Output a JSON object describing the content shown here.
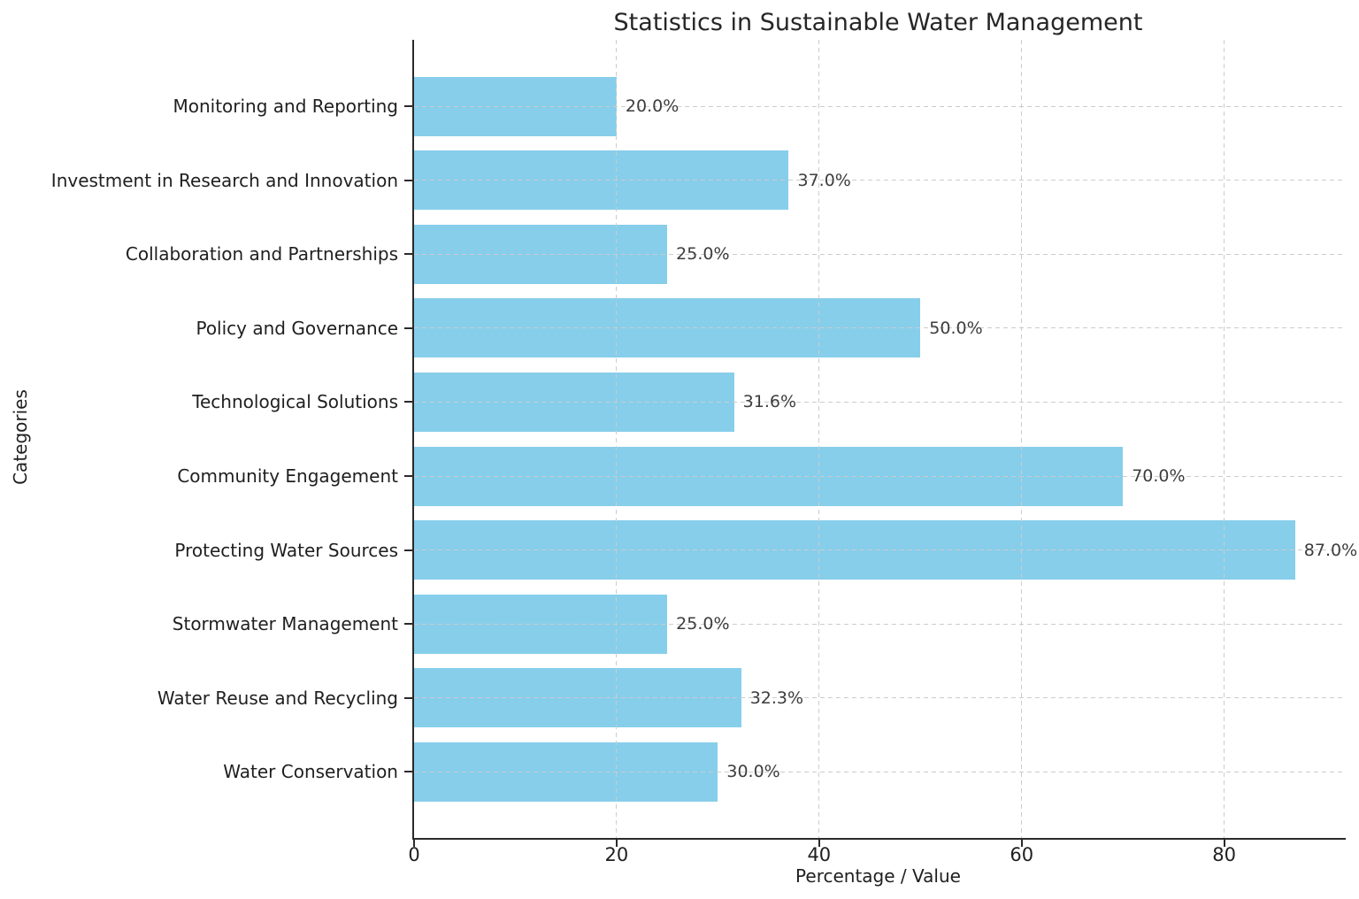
{
  "chart_data": {
    "type": "bar",
    "orientation": "horizontal",
    "title": "Statistics in Sustainable Water Management",
    "xlabel": "Percentage / Value",
    "ylabel": "Categories",
    "category_order": "top-to-bottom",
    "categories": [
      "Monitoring and Reporting",
      "Investment in Research and Innovation",
      "Collaboration and Partnerships",
      "Policy and Governance",
      "Technological Solutions",
      "Community Engagement",
      "Protecting Water Sources",
      "Stormwater Management",
      "Water Reuse and Recycling",
      "Water Conservation"
    ],
    "values": [
      20.0,
      37.0,
      25.0,
      50.0,
      31.6,
      70.0,
      87.0,
      25.0,
      32.3,
      30.0
    ],
    "value_labels": [
      "20.0%",
      "37.0%",
      "25.0%",
      "50.0%",
      "31.6%",
      "70.0%",
      "87.0%",
      "25.0%",
      "32.3%",
      "30.0%"
    ],
    "xticks": [
      0,
      20,
      40,
      60,
      80
    ],
    "xlim": [
      0,
      92
    ],
    "legend": null,
    "grid": {
      "enabled": true,
      "style": "dashed",
      "axes": "both",
      "above_bars": true
    },
    "colors": {
      "bar": "#87CEEB",
      "grid": "#cccccc",
      "spine": "#2a2a2a",
      "text": "#1f1f1f",
      "value_label": "#3d3d3d",
      "background": "#ffffff"
    }
  }
}
